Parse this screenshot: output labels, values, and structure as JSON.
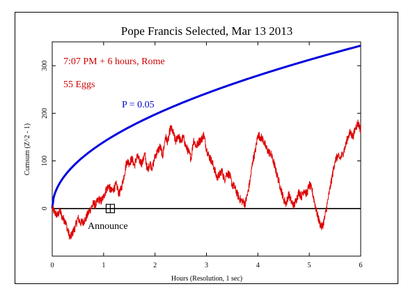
{
  "chart_data": {
    "type": "line",
    "title": "Pope Francis Selected, Mar 13 2013",
    "xlabel": "Hours (Resolution, 1 sec)",
    "ylabel": "Cumsum (Z^2 - 1)",
    "xlim": [
      0,
      6
    ],
    "ylim": [
      -100,
      350
    ],
    "x_ticks": [
      0,
      1,
      2,
      3,
      4,
      5,
      6
    ],
    "y_ticks": [
      0,
      100,
      200,
      300
    ],
    "annotations": {
      "time": "7:07 PM + 6 hours, Rome",
      "eggs": "55 Eggs",
      "p_label": "P = 0.05",
      "event": "Announce"
    },
    "event_marker": {
      "x": 1.13,
      "y": 0
    },
    "series": [
      {
        "color": "#dd0000",
        "x": [
          0,
          0.05,
          0.1,
          0.15,
          0.2,
          0.25,
          0.3,
          0.35,
          0.4,
          0.45,
          0.5,
          0.55,
          0.6,
          0.65,
          0.7,
          0.75,
          0.8,
          0.85,
          0.9,
          0.95,
          1.0,
          1.05,
          1.1,
          1.15,
          1.2,
          1.25,
          1.3,
          1.35,
          1.4,
          1.45,
          1.5,
          1.55,
          1.6,
          1.65,
          1.7,
          1.75,
          1.8,
          1.85,
          1.9,
          1.95,
          2.0,
          2.05,
          2.1,
          2.15,
          2.2,
          2.25,
          2.3,
          2.35,
          2.4,
          2.45,
          2.5,
          2.55,
          2.6,
          2.65,
          2.7,
          2.75,
          2.8,
          2.85,
          2.9,
          2.95,
          3.0,
          3.05,
          3.1,
          3.15,
          3.2,
          3.25,
          3.3,
          3.35,
          3.4,
          3.45,
          3.5,
          3.55,
          3.6,
          3.65,
          3.7,
          3.75,
          3.8,
          3.85,
          3.9,
          3.95,
          4.0,
          4.05,
          4.1,
          4.15,
          4.2,
          4.25,
          4.3,
          4.35,
          4.4,
          4.45,
          4.5,
          4.55,
          4.6,
          4.65,
          4.7,
          4.75,
          4.8,
          4.85,
          4.9,
          4.95,
          5.0,
          5.05,
          5.1,
          5.15,
          5.2,
          5.25,
          5.3,
          5.35,
          5.4,
          5.45,
          5.5,
          5.55,
          5.6,
          5.65,
          5.7,
          5.75,
          5.8,
          5.85,
          5.9,
          5.95,
          6.0
        ],
        "values": [
          0,
          -8,
          -15,
          -5,
          -20,
          -25,
          -45,
          -62,
          -50,
          -38,
          -20,
          -30,
          -28,
          -22,
          -10,
          0,
          10,
          8,
          20,
          15,
          25,
          40,
          48,
          35,
          42,
          50,
          30,
          45,
          70,
          100,
          95,
          105,
          90,
          110,
          100,
          95,
          115,
          80,
          95,
          85,
          110,
          120,
          130,
          110,
          150,
          140,
          170,
          160,
          140,
          155,
          140,
          150,
          130,
          120,
          105,
          145,
          130,
          140,
          145,
          155,
          125,
          110,
          100,
          85,
          65,
          70,
          80,
          60,
          75,
          70,
          50,
          45,
          30,
          20,
          15,
          10,
          30,
          60,
          100,
          120,
          155,
          150,
          145,
          130,
          120,
          115,
          100,
          80,
          60,
          40,
          20,
          10,
          30,
          15,
          5,
          20,
          35,
          25,
          40,
          30,
          50,
          40,
          15,
          -10,
          -30,
          -40,
          -20,
          10,
          40,
          70,
          100,
          110,
          105,
          115,
          130,
          150,
          160,
          150,
          170,
          180,
          165
        ]
      },
      {
        "name": "P = 0.05",
        "color": "#0000dd",
        "envelope": "1.645 * sqrt(2 * n)",
        "endpoint": {
          "x": 6,
          "y": 342
        }
      },
      {
        "color": "#000000",
        "constant": 0
      }
    ]
  }
}
